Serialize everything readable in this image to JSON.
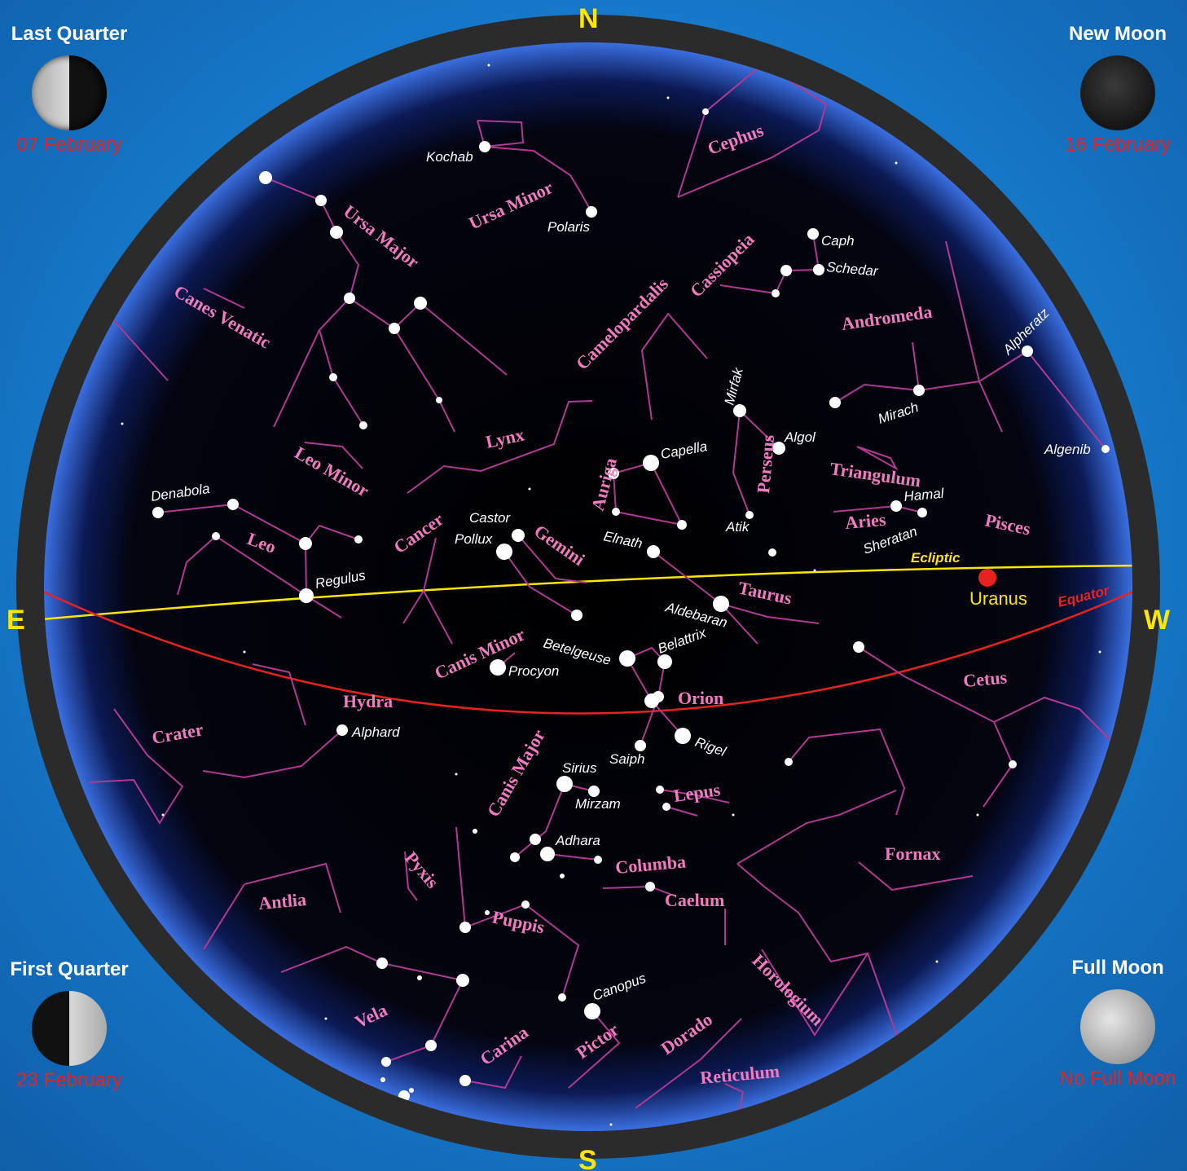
{
  "compass": {
    "north": "N",
    "south": "S",
    "east": "E",
    "west": "W"
  },
  "moon_phases": [
    {
      "title": "Last Quarter",
      "date": "07 February",
      "phase": "last-quarter"
    },
    {
      "title": "New Moon",
      "date": "16 February",
      "phase": "new"
    },
    {
      "title": "First Quarter",
      "date": "23 February",
      "phase": "first-quarter"
    },
    {
      "title": "Full Moon",
      "date": "No Full Moon",
      "phase": "full"
    }
  ],
  "lines": {
    "ecliptic": "Ecliptic",
    "equator": "Equator"
  },
  "planet": {
    "name": "Uranus",
    "color": "#e8221e"
  },
  "colors": {
    "constellation": "#f27bc0",
    "constellation_line": "#b03a92",
    "ecliptic": "#ffe600",
    "equator": "#e8221e",
    "sky": "#000000",
    "background": "#1677c8"
  },
  "constellations": [
    "Ursa Minor",
    "Cephus",
    "Ursa Major",
    "Cassiopeia",
    "Camelopardalis",
    "Canes Venatic",
    "Andromeda",
    "Lynx",
    "Auriga",
    "Perseus",
    "Leo Minor",
    "Triangulum",
    "Cancer",
    "Gemini",
    "Leo",
    "Aries",
    "Pisces",
    "Taurus",
    "Canis Minor",
    "Hydra",
    "Orion",
    "Cetus",
    "Crater",
    "Canis Major",
    "Lepus",
    "Fornax",
    "Pyxis",
    "Columba",
    "Antlia",
    "Caelum",
    "Puppis",
    "Horologium",
    "Vela",
    "Carina",
    "Pictor",
    "Dorado",
    "Reticulum"
  ],
  "stars": [
    "Kochab",
    "Polaris",
    "Caph",
    "Schedar",
    "Alpheratz",
    "Mirfak",
    "Algol",
    "Mirach",
    "Algenib",
    "Capella",
    "Denabola",
    "Hamal",
    "Castor",
    "Pollux",
    "Sheratan",
    "Elnath",
    "Atik",
    "Regulus",
    "Aldebaran",
    "Betelgeuse",
    "Belattrix",
    "Procyon",
    "Alphard",
    "Rigel",
    "Saiph",
    "Sirius",
    "Mirzam",
    "Adhara",
    "Canopus"
  ]
}
